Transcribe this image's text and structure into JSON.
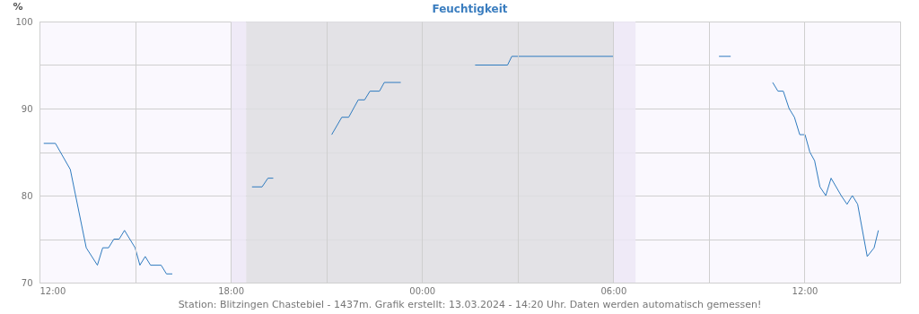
{
  "chart_data": {
    "type": "line",
    "title": "Feuchtigkeit",
    "ylabel": "%",
    "series": [
      {
        "color": "#2f7bbf",
        "x": [
          "2024-03-12T12:08",
          "2024-03-12T12:30",
          "2024-03-12T12:58",
          "2024-03-12T13:28",
          "2024-03-12T13:49",
          "2024-03-12T13:59",
          "2024-03-12T14:10",
          "2024-03-12T14:20",
          "2024-03-12T14:30",
          "2024-03-12T14:40",
          "2024-03-12T15:00",
          "2024-03-12T15:09",
          "2024-03-12T15:19",
          "2024-03-12T15:29",
          "2024-03-12T15:49",
          "2024-03-12T15:59",
          "2024-03-12T16:10"
        ],
        "values": [
          86,
          86,
          83,
          74,
          72,
          74,
          74,
          75,
          75,
          76,
          74,
          72,
          73,
          72,
          72,
          71,
          71
        ]
      },
      {
        "color": "#2f7bbf",
        "x": [
          "2024-03-12T18:40",
          "2024-03-12T18:59",
          "2024-03-12T19:10",
          "2024-03-12T19:20"
        ],
        "values": [
          81,
          81,
          82,
          82
        ]
      },
      {
        "color": "#2f7bbf",
        "x": [
          "2024-03-12T21:10",
          "2024-03-12T21:29",
          "2024-03-12T21:42",
          "2024-03-12T22:00",
          "2024-03-12T22:12",
          "2024-03-12T22:22",
          "2024-03-12T22:40",
          "2024-03-12T22:49",
          "2024-03-12T23:20"
        ],
        "values": [
          87,
          89,
          89,
          91,
          91,
          92,
          92,
          93,
          93
        ]
      },
      {
        "color": "#2f7bbf",
        "x": [
          "2024-03-13T01:40",
          "2024-03-13T02:41",
          "2024-03-13T02:49",
          "2024-03-13T06:01"
        ],
        "values": [
          95,
          95,
          96,
          96
        ]
      },
      {
        "color": "#2f7bbf",
        "x": [
          "2024-03-13T09:19",
          "2024-03-13T09:41"
        ],
        "values": [
          96,
          96
        ]
      },
      {
        "color": "#2f7bbf",
        "x": [
          "2024-03-13T11:00",
          "2024-03-13T11:10",
          "2024-03-13T11:20",
          "2024-03-13T11:31",
          "2024-03-13T11:41",
          "2024-03-13T11:51",
          "2024-03-13T12:01",
          "2024-03-13T12:10",
          "2024-03-13T12:19",
          "2024-03-13T12:29",
          "2024-03-13T12:40",
          "2024-03-13T12:50",
          "2024-03-13T13:09",
          "2024-03-13T13:20",
          "2024-03-13T13:30",
          "2024-03-13T13:40",
          "2024-03-13T13:58",
          "2024-03-13T14:11",
          "2024-03-13T14:19"
        ],
        "values": [
          93,
          92,
          92,
          90,
          89,
          87,
          87,
          85,
          84,
          81,
          80,
          82,
          80,
          79,
          80,
          79,
          73,
          74,
          76
        ]
      }
    ],
    "xlim": [
      "2024-03-12T12:00",
      "2024-03-13T15:00"
    ],
    "xticks": [
      {
        "value": "2024-03-12T12:00",
        "label": "12:00"
      },
      {
        "value": "2024-03-12T15:00",
        "label": null
      },
      {
        "value": "2024-03-12T18:00",
        "label": "18:00"
      },
      {
        "value": "2024-03-12T21:00",
        "label": null
      },
      {
        "value": "2024-03-13T00:00",
        "label": "00:00"
      },
      {
        "value": "2024-03-13T03:00",
        "label": null
      },
      {
        "value": "2024-03-13T06:00",
        "label": "06:00"
      },
      {
        "value": "2024-03-13T09:00",
        "label": null
      },
      {
        "value": "2024-03-13T12:00",
        "label": "12:00"
      }
    ],
    "ylim": [
      70,
      100
    ],
    "yticks": [
      70,
      {
        "value": 75,
        "label": null
      },
      80,
      {
        "value": 85,
        "label": null
      },
      90,
      {
        "value": 95,
        "label": null
      },
      100
    ],
    "bands": [
      {
        "axis": "x",
        "from": "2024-03-12T18:00",
        "to": "2024-03-12T18:29",
        "color": "#ece8f6"
      },
      {
        "axis": "x",
        "from": "2024-03-12T18:29",
        "to": "2024-03-13T06:00",
        "color": "#dedee2"
      },
      {
        "axis": "x",
        "from": "2024-03-13T06:00",
        "to": "2024-03-13T06:42",
        "color": "#ece8f6"
      }
    ],
    "grid": true,
    "marker": "none",
    "line_style": "solid",
    "annotations": [
      "Station: Blitzingen Chastebiel - 1437m. Grafik erstellt: 13.03.2024 - 14:20 Uhr. Daten werden automatisch gemessen!"
    ]
  }
}
